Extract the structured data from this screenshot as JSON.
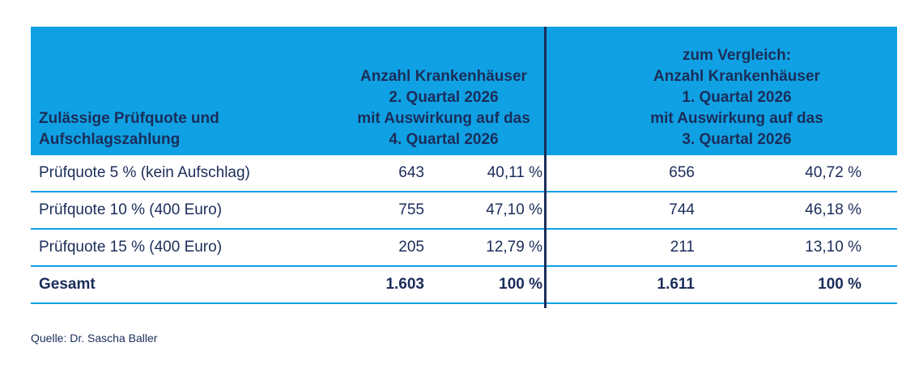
{
  "chart_data": {
    "type": "table",
    "columns": [
      "Zulässige Prüfquote und Aufschlagszahlung",
      "Anzahl Krankenhäuser 2. Quartal 2026 mit Auswirkung auf das 4. Quartal 2026",
      "zum Vergleich: Anzahl Krankenhäuser 1. Quartal 2026 mit Auswirkung auf das 3. Quartal 2026"
    ],
    "header": {
      "col1_lines": [
        "Zulässige Prüfquote und",
        "Aufschlagszahlung"
      ],
      "col2_lines": [
        "Anzahl Krankenhäuser",
        "2. Quartal 2026",
        "mit Auswirkung auf das",
        "4. Quartal 2026"
      ],
      "col3_lines": [
        "zum Vergleich:",
        "Anzahl Krankenhäuser",
        "1. Quartal 2026",
        "mit Auswirkung auf das",
        "3. Quartal 2026"
      ]
    },
    "rows": [
      {
        "label": "Prüfquote 5 % (kein Aufschlag)",
        "q2_count": "643",
        "q2_pct": "40,11 %",
        "q1_count": "656",
        "q1_pct": "40,72 %"
      },
      {
        "label": "Prüfquote 10 % (400 Euro)",
        "q2_count": "755",
        "q2_pct": "47,10 %",
        "q1_count": "744",
        "q1_pct": "46,18 %"
      },
      {
        "label": "Prüfquote 15 % (400 Euro)",
        "q2_count": "205",
        "q2_pct": "12,79 %",
        "q1_count": "211",
        "q1_pct": "13,10 %"
      },
      {
        "label": "Gesamt",
        "q2_count": "1.603",
        "q2_pct": "100 %",
        "q1_count": "1.611",
        "q1_pct": "100 %"
      }
    ]
  },
  "source": "Quelle: Dr. Sascha Baller",
  "colors": {
    "header_bg": "#0fa1e3",
    "text": "#1b2d5a",
    "rule": "#0fa1e3",
    "divider": "#1b2d5a"
  }
}
